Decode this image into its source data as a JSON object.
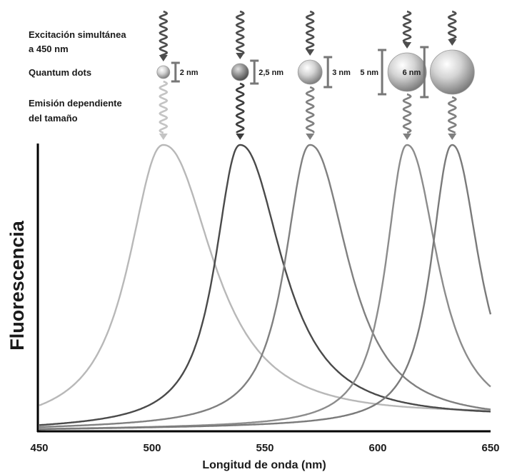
{
  "chart_data": {
    "type": "line",
    "title": "",
    "xlabel": "Longitud de onda (nm)",
    "ylabel": "Fluorescencia",
    "xlim": [
      450,
      650
    ],
    "ylim": [
      0,
      1
    ],
    "x_ticks": [
      450,
      500,
      550,
      600,
      650
    ],
    "grid": false,
    "legend": "none",
    "annotations": {
      "excitation": [
        "Excitación simultánea",
        "a 450 nm"
      ],
      "quantum_dots": "Quantum dots",
      "emission": [
        "Emisión dependiente",
        "del tamaño"
      ]
    },
    "series": [
      {
        "size_label": "2 nm",
        "peak": 505,
        "color": "#b8b8b8"
      },
      {
        "size_label": "2,5 nm",
        "peak": 539,
        "color": "#4a4a4a"
      },
      {
        "size_label": "3 nm",
        "peak": 570,
        "color": "#808080"
      },
      {
        "size_label": "5 nm",
        "peak": 613,
        "color": "#8c8c8c"
      },
      {
        "size_label": "6 nm",
        "peak": 633,
        "color": "#7a7a7a"
      }
    ]
  }
}
